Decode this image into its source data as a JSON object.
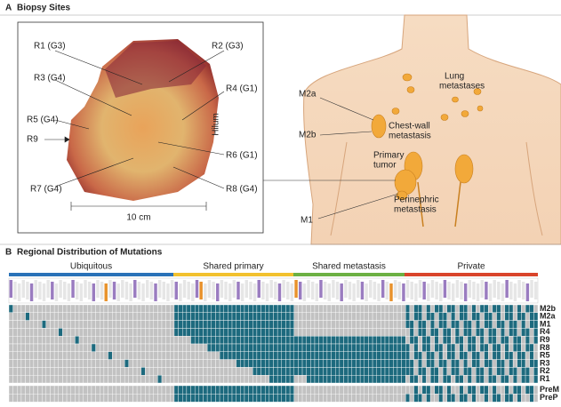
{
  "panel_a": {
    "letter": "A",
    "title": "Biopsy Sites",
    "region_labels": [
      "R1 (G3)",
      "R2 (G3)",
      "R3 (G4)",
      "R4 (G1)",
      "R5 (G4)",
      "R9",
      "R6 (G1)",
      "R7 (G4)",
      "R8 (G4)"
    ],
    "hilum": "Hilum",
    "scale": "10 cm",
    "anatomy_labels": [
      {
        "lines": [
          "Lung",
          "metastases"
        ]
      },
      {
        "lines": [
          "Chest-wall",
          "metastasis"
        ]
      },
      {
        "lines": [
          "Primary",
          "tumor"
        ]
      },
      {
        "lines": [
          "Perinephric",
          "metastasis"
        ]
      }
    ],
    "site_labels": [
      "M2a",
      "M2b",
      "M1"
    ]
  },
  "panel_b": {
    "letter": "B",
    "title": "Regional Distribution of Mutations",
    "groups": [
      "Ubiquitous",
      "Shared primary",
      "Shared metastasis",
      "Private"
    ],
    "rows": [
      "M2b",
      "M2a",
      "M1",
      "R4",
      "R9",
      "R8",
      "R5",
      "R3",
      "R2",
      "R1",
      "PreM",
      "PreP"
    ]
  }
}
